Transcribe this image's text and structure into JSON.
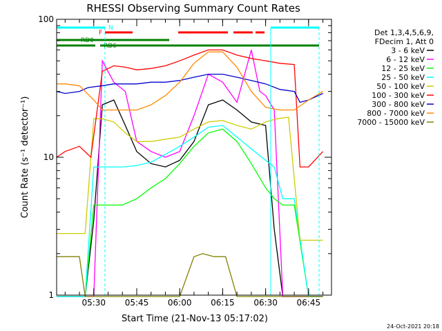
{
  "chart_data": {
    "type": "line",
    "title": "RHESSI Observing Summary Count Rates",
    "xlabel": "Start Time (21-Nov-13 05:17:02)",
    "ylabel": "Count Rate (s⁻¹ detector⁻¹)",
    "y_scale": "log",
    "ylim": [
      1,
      100
    ],
    "xlim": [
      "05:17:02",
      "06:53:00"
    ],
    "y_ticks": [
      "1",
      "10",
      "100"
    ],
    "x_ticks": [
      "05:30",
      "05:45",
      "06:00",
      "06:15",
      "06:30",
      "06:45"
    ],
    "legend_header": [
      "Det 1,3,4,5,6,9,",
      "FDecim 1, Att 0"
    ],
    "legend_placement": "right",
    "grid": false,
    "series": [
      {
        "name": "3 - 6 keV",
        "color": "#000000",
        "x": [
          "05:17",
          "05:27",
          "05:30",
          "05:33",
          "05:37",
          "05:41",
          "05:45",
          "05:50",
          "05:55",
          "06:00",
          "06:05",
          "06:10",
          "06:15",
          "06:20",
          "06:25",
          "06:30",
          "06:33",
          "06:36",
          "06:40",
          "06:45",
          "06:50"
        ],
        "values": [
          0,
          0,
          3.5,
          24,
          26,
          17,
          11,
          9,
          8.5,
          9.5,
          13,
          24,
          26,
          22,
          18,
          17,
          3,
          0,
          0,
          0,
          0
        ]
      },
      {
        "name": "6 - 12 keV",
        "color": "#ff00ff",
        "x": [
          "05:17",
          "05:27",
          "05:30",
          "05:33",
          "05:37",
          "05:41",
          "05:45",
          "05:50",
          "05:55",
          "06:00",
          "06:05",
          "06:10",
          "06:15",
          "06:20",
          "06:25",
          "06:28",
          "06:30",
          "06:33",
          "06:36",
          "06:40",
          "06:45",
          "06:50"
        ],
        "values": [
          0,
          0,
          0,
          50,
          35,
          30,
          13,
          11,
          10,
          11,
          20,
          40,
          35,
          25,
          60,
          30,
          28,
          22,
          0,
          0,
          0,
          0
        ]
      },
      {
        "name": "12 - 25 keV",
        "color": "#00ff00",
        "x": [
          "05:17",
          "05:27",
          "05:30",
          "05:35",
          "05:40",
          "05:45",
          "05:50",
          "05:55",
          "06:00",
          "06:05",
          "06:10",
          "06:15",
          "06:20",
          "06:25",
          "06:30",
          "06:33",
          "06:36",
          "06:40",
          "06:45",
          "06:50"
        ],
        "values": [
          0,
          0,
          4.5,
          4.5,
          4.5,
          5,
          6,
          7,
          9,
          12,
          15,
          16,
          13,
          9,
          6,
          5,
          4.5,
          4.5,
          0,
          0
        ]
      },
      {
        "name": "25 - 50 keV",
        "color": "#00ffff",
        "x": [
          "05:17",
          "05:27",
          "05:30",
          "05:35",
          "05:40",
          "05:45",
          "05:50",
          "05:55",
          "06:00",
          "06:05",
          "06:10",
          "06:15",
          "06:20",
          "06:25",
          "06:30",
          "06:33",
          "06:36",
          "06:40",
          "06:45",
          "06:50"
        ],
        "values": [
          0,
          0,
          8.5,
          8.5,
          8.5,
          8.7,
          9.2,
          10.5,
          12,
          14,
          16.5,
          17,
          14,
          11.5,
          9.5,
          8.5,
          5,
          5,
          0,
          0
        ]
      },
      {
        "name": "50 - 100 keV",
        "color": "#cccc00",
        "x": [
          "05:17",
          "05:27",
          "05:30",
          "05:33",
          "05:37",
          "05:41",
          "05:45",
          "05:50",
          "05:55",
          "06:00",
          "06:05",
          "06:10",
          "06:15",
          "06:20",
          "06:25",
          "06:30",
          "06:34",
          "06:38",
          "06:42",
          "06:45",
          "06:50"
        ],
        "values": [
          2.8,
          2.8,
          19,
          19,
          18,
          15,
          13,
          13,
          13.5,
          14,
          16,
          18,
          18.5,
          17,
          16,
          18,
          19,
          19.5,
          2.5,
          2.5,
          2.5
        ]
      },
      {
        "name": "100 - 300 keV",
        "color": "#ff0000",
        "x": [
          "05:17",
          "05:20",
          "05:25",
          "05:29",
          "05:33",
          "05:37",
          "05:41",
          "05:45",
          "05:50",
          "05:55",
          "06:00",
          "06:05",
          "06:10",
          "06:15",
          "06:20",
          "06:25",
          "06:30",
          "06:35",
          "06:40",
          "06:42",
          "06:45",
          "06:50"
        ],
        "values": [
          10,
          11,
          12,
          10,
          42,
          46,
          45,
          43,
          44,
          46,
          50,
          55,
          60,
          60,
          55,
          52,
          50,
          48,
          47,
          8.5,
          8.5,
          11
        ]
      },
      {
        "name": "300 - 800 keV",
        "color": "#0000cc",
        "x": [
          "05:17",
          "05:20",
          "05:25",
          "05:28",
          "05:33",
          "05:37",
          "05:41",
          "05:45",
          "05:50",
          "05:55",
          "06:00",
          "06:05",
          "06:10",
          "06:15",
          "06:20",
          "06:25",
          "06:30",
          "06:35",
          "06:40",
          "06:42",
          "06:45",
          "06:50"
        ],
        "values": [
          30,
          29,
          30,
          32,
          33,
          34,
          34,
          34,
          35,
          35,
          36,
          38,
          40,
          40,
          38,
          36,
          34,
          31,
          30,
          25,
          26,
          29
        ]
      },
      {
        "name": "800 - 7000 keV",
        "color": "#ff8800",
        "x": [
          "05:17",
          "05:20",
          "05:25",
          "05:30",
          "05:33",
          "05:37",
          "05:41",
          "05:45",
          "05:50",
          "05:55",
          "06:00",
          "06:05",
          "06:10",
          "06:15",
          "06:20",
          "06:25",
          "06:30",
          "06:35",
          "06:40",
          "06:45",
          "06:50"
        ],
        "values": [
          34,
          34,
          33,
          26,
          22,
          22,
          22,
          22,
          24,
          28,
          35,
          48,
          58,
          58,
          45,
          30,
          23,
          22,
          22,
          26,
          30
        ]
      },
      {
        "name": "7000 - 15000 keV",
        "color": "#808000",
        "x": [
          "05:17",
          "05:20",
          "05:25",
          "05:27",
          "05:40",
          "06:00",
          "06:05",
          "06:08",
          "06:12",
          "06:16",
          "06:20",
          "06:30",
          "06:40",
          "06:50"
        ],
        "values": [
          1.9,
          1.9,
          1.9,
          0,
          0,
          0,
          1.9,
          2.0,
          1.9,
          1.9,
          0,
          0,
          0,
          0
        ]
      }
    ],
    "annotations": [
      {
        "text": "N",
        "color": "#00ffff"
      },
      {
        "text": "F",
        "color": "#ff0000"
      },
      {
        "text": "RD0",
        "color": "#008000"
      },
      {
        "text": "RD6",
        "color": "#008000"
      }
    ],
    "timestamp": "24-Oct-2021 20:18"
  }
}
